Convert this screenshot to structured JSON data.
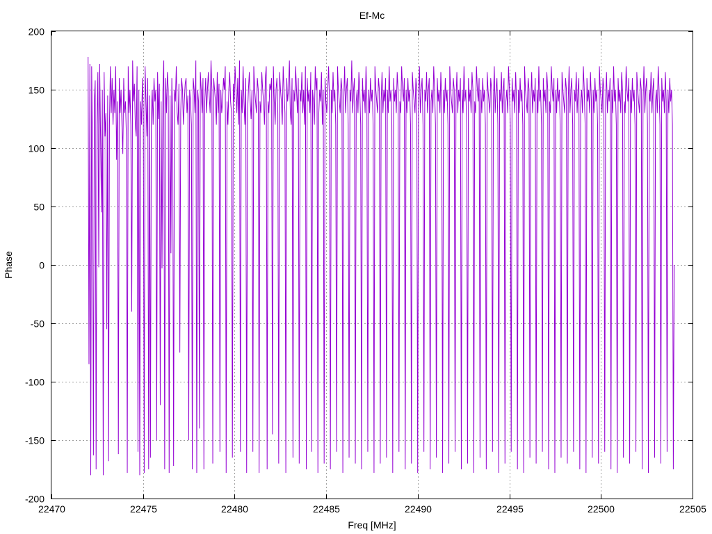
{
  "chart_data": {
    "type": "line",
    "title": "Ef-Mc",
    "xlabel": "Freq [MHz]",
    "ylabel": "Phase",
    "xlim": [
      22470,
      22505
    ],
    "ylim": [
      -200,
      200
    ],
    "xticks": [
      22470,
      22475,
      22480,
      22485,
      22490,
      22495,
      22500,
      22505
    ],
    "yticks": [
      -200,
      -150,
      -100,
      -50,
      0,
      50,
      100,
      150,
      200
    ],
    "grid": true,
    "line_color": "#9400d3",
    "series": [
      {
        "x_start": 22472.0,
        "x_end": 22504.0,
        "x_step": 0.05,
        "values": [
          178,
          -85,
          172,
          -180,
          170,
          96,
          -163,
          140,
          158,
          -175,
          120,
          165,
          -2,
          172,
          110,
          45,
          150,
          -180,
          165,
          110,
          130,
          -55,
          145,
          -168,
          120,
          170,
          130,
          160,
          120,
          150,
          130,
          170,
          90,
          140,
          -162,
          160,
          130,
          150,
          120,
          95,
          160,
          130,
          140,
          110,
          -178,
          170,
          130,
          150,
          120,
          -40,
          175,
          140,
          155,
          120,
          110,
          170,
          -160,
          150,
          -180,
          140,
          120,
          160,
          130,
          -178,
          170,
          140,
          110,
          160,
          -175,
          145,
          -165,
          130,
          150,
          120,
          160,
          140,
          150,
          -150,
          165,
          125,
          155,
          -120,
          140,
          -3,
          150,
          175,
          -175,
          160,
          130,
          165,
          150,
          -178,
          145,
          10,
          160,
          120,
          -172,
          150,
          140,
          170,
          130,
          120,
          155,
          -75,
          130,
          160,
          150,
          120,
          140,
          155,
          160,
          130,
          145,
          -150,
          150,
          140,
          120,
          -175,
          160,
          150,
          130,
          175,
          -178,
          150,
          140,
          -140,
          165,
          150,
          130,
          160,
          -175,
          140,
          160,
          130,
          150,
          165,
          145,
          130,
          175,
          150,
          -170,
          160,
          150,
          140,
          120,
          165,
          130,
          155,
          -160,
          150,
          130,
          140,
          160,
          150,
          170,
          -178,
          140,
          120,
          150,
          165,
          140,
          130,
          -165,
          155,
          140,
          170,
          150,
          130,
          160,
          120,
          175,
          -160,
          150,
          130,
          170,
          140,
          120,
          160,
          -178,
          130,
          150,
          165,
          140,
          125,
          150,
          -160,
          170,
          150,
          140,
          130,
          160,
          150,
          -178,
          140,
          130,
          165,
          150,
          140,
          120,
          160,
          170,
          -175,
          140,
          130,
          155,
          150,
          160,
          -145,
          170,
          140,
          120,
          150,
          160,
          130,
          -170,
          165,
          150,
          140,
          120,
          170,
          150,
          130,
          -178,
          160,
          140,
          150,
          175,
          130,
          120,
          160,
          -165,
          150,
          140,
          170,
          150,
          130,
          160,
          -170,
          150,
          140,
          165,
          130,
          150,
          120,
          170,
          -175,
          160,
          140,
          150,
          130,
          165,
          -160,
          150,
          140,
          120,
          170,
          150,
          160,
          -178,
          130,
          150,
          140,
          165,
          120,
          150,
          -170,
          160,
          140,
          130,
          150,
          170,
          140,
          -175,
          150,
          130,
          165,
          140,
          150,
          120,
          -160,
          170,
          150,
          140,
          130,
          160,
          150,
          -178,
          140,
          170,
          130,
          150,
          160,
          120,
          -165,
          150,
          140,
          175,
          130,
          150,
          160,
          -170,
          140,
          150,
          130,
          165,
          150,
          120,
          -175,
          160,
          140,
          150,
          130,
          170,
          140,
          -160,
          150,
          130,
          160,
          140,
          150,
          120,
          -178,
          170,
          150,
          140,
          130,
          160,
          150,
          -170,
          140,
          165,
          130,
          150,
          140,
          160,
          -165,
          150,
          130,
          170,
          140,
          150,
          120,
          -178,
          160,
          140,
          150,
          130,
          165,
          150,
          -160,
          140,
          130,
          170,
          150,
          140,
          160,
          -175,
          150,
          130,
          160,
          140,
          150,
          120,
          -170,
          165,
          150,
          140,
          130,
          160,
          150,
          -178,
          140,
          170,
          130,
          150,
          160,
          120,
          -160,
          150,
          140,
          165,
          130,
          150,
          160,
          -175,
          140,
          150,
          130,
          170,
          150,
          120,
          -165,
          160,
          140,
          150,
          130,
          165,
          140,
          -178,
          150,
          130,
          160,
          140,
          150,
          120,
          -170,
          170,
          150,
          140,
          130,
          160,
          150,
          -160,
          140,
          165,
          130,
          150,
          140,
          160,
          -175,
          150,
          130,
          170,
          140,
          150,
          120,
          -170,
          160,
          140,
          150,
          130,
          165,
          150,
          -178,
          140,
          130,
          170,
          150,
          140,
          160,
          -165,
          150,
          130,
          160,
          140,
          150,
          120,
          -175,
          165,
          150,
          140,
          130,
          160,
          150,
          -160,
          140,
          170,
          130,
          150,
          160,
          120,
          -178,
          150,
          140,
          165,
          130,
          150,
          160,
          -170,
          140,
          150,
          130,
          170,
          150,
          120,
          -160,
          160,
          140,
          150,
          130,
          165,
          140,
          -175,
          150,
          130,
          160,
          140,
          150,
          120,
          -178,
          170,
          150,
          140,
          130,
          160,
          150,
          -165,
          140,
          165,
          130,
          150,
          140,
          160,
          -170,
          150,
          130,
          170,
          140,
          150,
          120,
          -160,
          160,
          140,
          150,
          130,
          165,
          150,
          -175,
          140,
          130,
          170,
          150,
          140,
          160,
          -178,
          150,
          130,
          160,
          140,
          150,
          120,
          -165,
          165,
          150,
          140,
          130,
          160,
          150,
          -170,
          140,
          170,
          130,
          150,
          160,
          120,
          -160,
          150,
          140,
          165,
          130,
          150,
          160,
          -175,
          140,
          150,
          130,
          170,
          150,
          120,
          -178,
          160,
          140,
          150,
          130,
          165,
          140,
          -165,
          150,
          130,
          160,
          140,
          150,
          120,
          -170,
          170,
          150,
          140,
          130,
          160,
          150,
          -160,
          140,
          165,
          130,
          150,
          140,
          160,
          -175,
          150,
          130,
          170,
          140,
          150,
          120,
          -178,
          160,
          140,
          150,
          130,
          165,
          150,
          -165,
          140,
          130,
          170,
          150,
          140,
          160,
          -170,
          150,
          130,
          160,
          140,
          150,
          120,
          -160,
          165,
          150,
          140,
          130,
          160,
          150,
          -175,
          140,
          170,
          130,
          150,
          160,
          120,
          -178,
          150,
          140,
          165,
          130,
          150,
          160,
          -165,
          140,
          150,
          130,
          170,
          150,
          120,
          -170,
          160,
          140,
          150,
          130,
          165,
          140,
          -160,
          150,
          130,
          160,
          140,
          150,
          120,
          -175,
          0
        ]
      }
    ]
  }
}
